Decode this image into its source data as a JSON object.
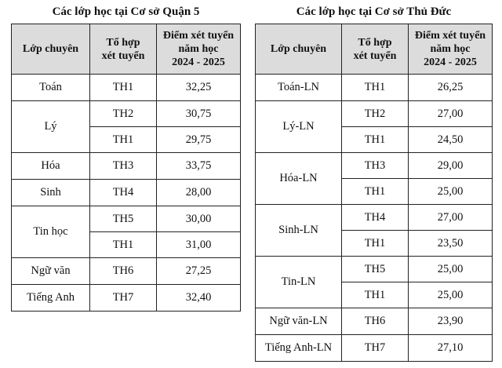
{
  "left": {
    "title": "Các lớp học tại Cơ sở Quận 5",
    "headers": [
      "Lớp chuyên",
      "Tổ hợp\nxét tuyển",
      "Điểm xét tuyển\nnăm học\n2024 - 2025"
    ],
    "groups": [
      {
        "name": "Toán",
        "rows": [
          {
            "combo": "TH1",
            "score": "32,25"
          }
        ]
      },
      {
        "name": "Lý",
        "rows": [
          {
            "combo": "TH2",
            "score": "30,75"
          },
          {
            "combo": "TH1",
            "score": "29,75"
          }
        ]
      },
      {
        "name": "Hóa",
        "rows": [
          {
            "combo": "TH3",
            "score": "33,75"
          }
        ]
      },
      {
        "name": "Sinh",
        "rows": [
          {
            "combo": "TH4",
            "score": "28,00"
          }
        ]
      },
      {
        "name": "Tin học",
        "rows": [
          {
            "combo": "TH5",
            "score": "30,00"
          },
          {
            "combo": "TH1",
            "score": "31,00"
          }
        ]
      },
      {
        "name": "Ngữ văn",
        "rows": [
          {
            "combo": "TH6",
            "score": "27,25"
          }
        ]
      },
      {
        "name": "Tiếng Anh",
        "rows": [
          {
            "combo": "TH7",
            "score": "32,40"
          }
        ]
      }
    ]
  },
  "right": {
    "title": "Các lớp học tại Cơ sở Thủ Đức",
    "headers": [
      "Lớp chuyên",
      "Tổ hợp\nxét tuyển",
      "Điểm xét tuyển\nnăm học\n2024 - 2025"
    ],
    "groups": [
      {
        "name": "Toán-LN",
        "rows": [
          {
            "combo": "TH1",
            "score": "26,25"
          }
        ]
      },
      {
        "name": "Lý-LN",
        "rows": [
          {
            "combo": "TH2",
            "score": "27,00"
          },
          {
            "combo": "TH1",
            "score": "24,50"
          }
        ]
      },
      {
        "name": "Hóa-LN",
        "rows": [
          {
            "combo": "TH3",
            "score": "29,00"
          },
          {
            "combo": "TH1",
            "score": "25,00"
          }
        ]
      },
      {
        "name": "Sinh-LN",
        "rows": [
          {
            "combo": "TH4",
            "score": "27,00"
          },
          {
            "combo": "TH1",
            "score": "23,50"
          }
        ]
      },
      {
        "name": "Tin-LN",
        "rows": [
          {
            "combo": "TH5",
            "score": "25,00"
          },
          {
            "combo": "TH1",
            "score": "25,00"
          }
        ]
      },
      {
        "name": "Ngữ văn-LN",
        "rows": [
          {
            "combo": "TH6",
            "score": "23,90"
          }
        ]
      },
      {
        "name": "Tiếng Anh-LN",
        "rows": [
          {
            "combo": "TH7",
            "score": "27,10"
          }
        ]
      }
    ]
  }
}
